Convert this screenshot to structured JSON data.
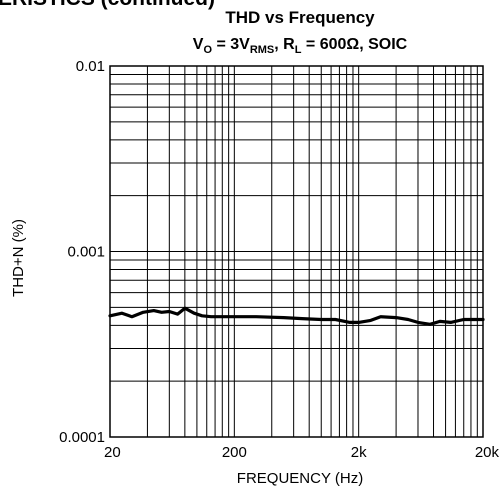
{
  "section_heading": "ERISTICS (continued)",
  "chart_data": {
    "type": "line",
    "title": "THD vs Frequency",
    "subtitle": {
      "p1": "V",
      "p1_sub": "O",
      "p2": " = 3V",
      "p2_sub": "RMS",
      "p3": ", R",
      "p3_sub": "L",
      "p4": " = 600Ω, SOIC"
    },
    "xlabel": "FREQUENCY (Hz)",
    "ylabel": "THD+N (%)",
    "x_scale": "log",
    "y_scale": "log",
    "xlim": [
      20,
      20000
    ],
    "ylim": [
      0.0001,
      0.01
    ],
    "x_ticks": [
      {
        "value": 20,
        "label": "20"
      },
      {
        "value": 200,
        "label": "200"
      },
      {
        "value": 2000,
        "label": "2k"
      },
      {
        "value": 20000,
        "label": "20k"
      }
    ],
    "y_ticks": [
      {
        "value": 0.01,
        "label": "0.01"
      },
      {
        "value": 0.001,
        "label": "0.001"
      },
      {
        "value": 0.0001,
        "label": "0.0001"
      }
    ],
    "grid": true,
    "line_color": "#000000",
    "series": [
      {
        "x": [
          20,
          25,
          30,
          37,
          45,
          52,
          60,
          70,
          80,
          95,
          110,
          130,
          160,
          200,
          300,
          500,
          700,
          1000,
          1300,
          1700,
          2000,
          2500,
          3000,
          4000,
          5000,
          6000,
          7500,
          9000,
          11000,
          14000,
          17000,
          20000
        ],
        "y": [
          0.00045,
          0.000465,
          0.000445,
          0.00047,
          0.00048,
          0.00047,
          0.000475,
          0.00046,
          0.000495,
          0.000465,
          0.00045,
          0.000445,
          0.000445,
          0.000445,
          0.000445,
          0.00044,
          0.000435,
          0.00043,
          0.00043,
          0.000415,
          0.000415,
          0.000425,
          0.000445,
          0.00044,
          0.00043,
          0.000415,
          0.000405,
          0.00042,
          0.000415,
          0.00043,
          0.00043,
          0.00043
        ]
      }
    ]
  }
}
